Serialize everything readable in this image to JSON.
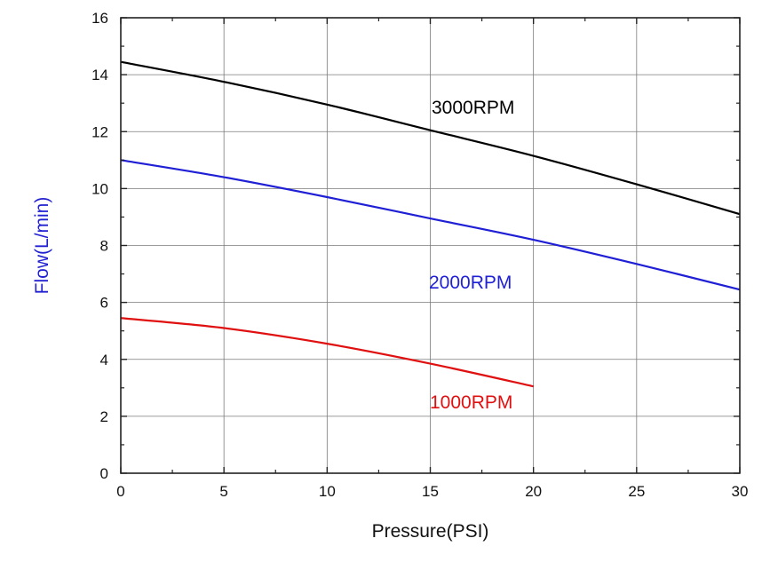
{
  "chart_data": {
    "type": "line",
    "title": "",
    "xlabel": "Pressure(PSI)",
    "ylabel": "Flow(L/min)",
    "xlim": [
      0,
      30
    ],
    "ylim": [
      0,
      16
    ],
    "x_ticks": [
      "0",
      "5",
      "10",
      "15",
      "20",
      "25",
      "30"
    ],
    "y_ticks": [
      "0",
      "2",
      "4",
      "6",
      "8",
      "10",
      "12",
      "14",
      "16"
    ],
    "grid": true,
    "legend": "inline labels",
    "series": [
      {
        "name": "3000RPM",
        "color": "#000000",
        "x": [
          0,
          5,
          10,
          15,
          20,
          25,
          30
        ],
        "y": [
          14.45,
          13.75,
          12.95,
          12.05,
          11.15,
          10.15,
          9.1
        ]
      },
      {
        "name": "2000RPM",
        "color": "#1f1fd6",
        "x": [
          0,
          5,
          10,
          15,
          20,
          25,
          30
        ],
        "y": [
          11.0,
          10.4,
          9.7,
          8.95,
          8.2,
          7.35,
          6.45
        ]
      },
      {
        "name": "1000RPM",
        "color": "#e01010",
        "x": [
          0,
          5,
          10,
          15,
          20
        ],
        "y": [
          5.45,
          5.1,
          4.55,
          3.85,
          3.05
        ]
      }
    ],
    "colors": {
      "ylabel": "#2020d0",
      "xlabel": "#111111"
    }
  }
}
